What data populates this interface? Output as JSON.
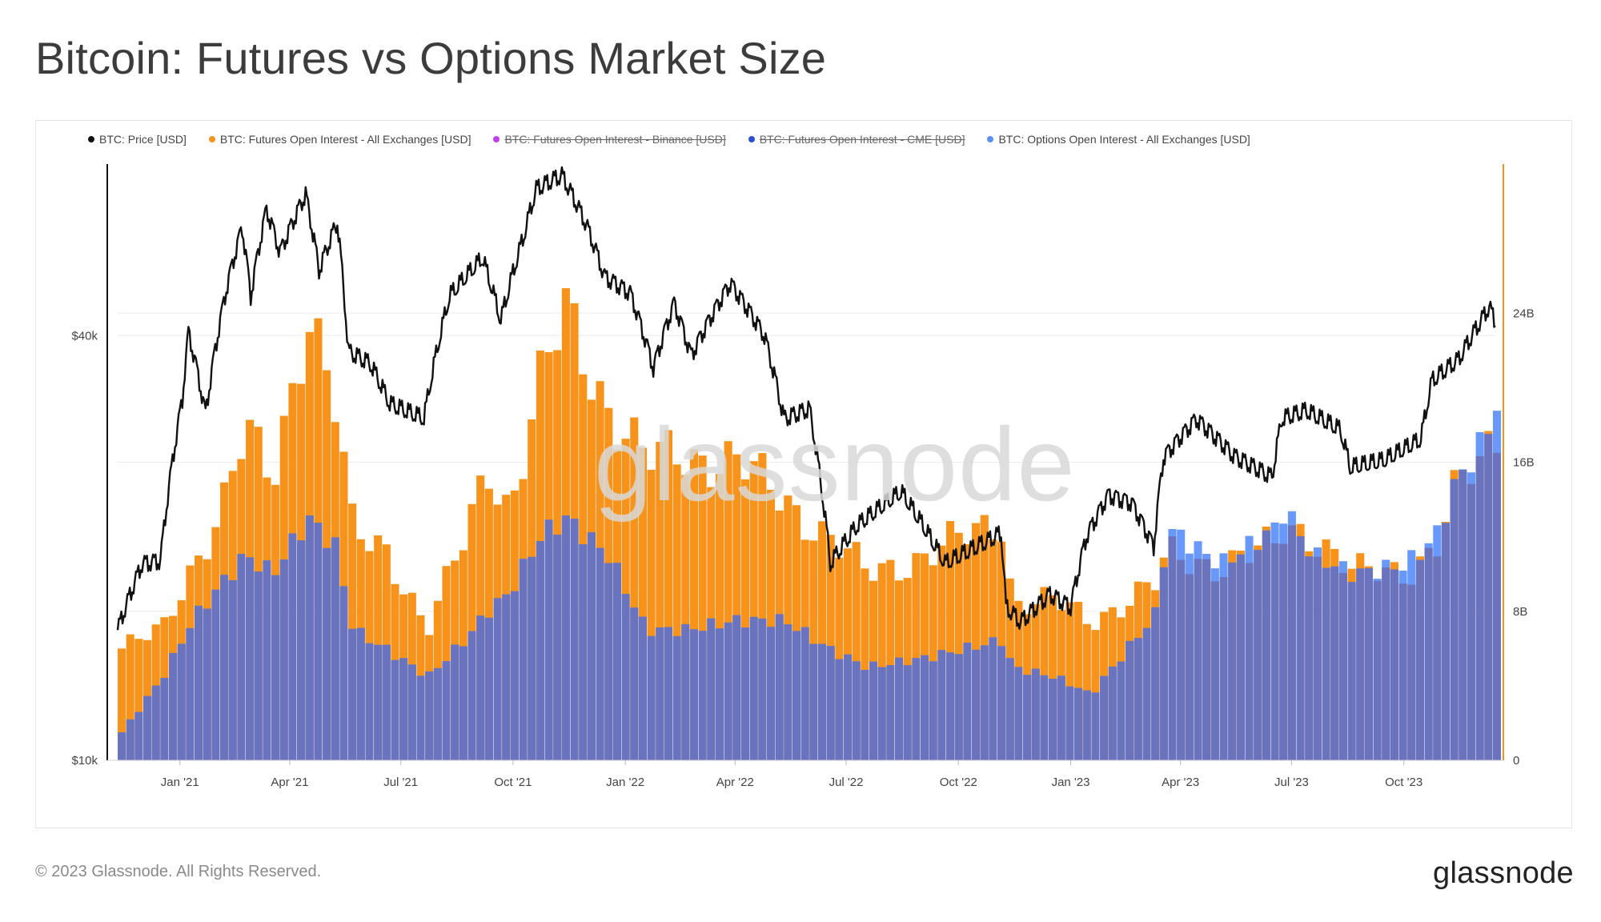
{
  "page": {
    "title": "Bitcoin: Futures vs Options Market Size",
    "footer_copyright": "© 2023 Glassnode. All Rights Reserved.",
    "footer_logo": "glassnode",
    "watermark": "glassnode"
  },
  "chart_data": {
    "type": "line+bar",
    "title": "Bitcoin: Futures vs Options Market Size",
    "legend_position": "top-left",
    "legend": [
      {
        "name": "BTC: Price [USD]",
        "color": "#111111",
        "enabled": true
      },
      {
        "name": "BTC: Futures Open Interest - All Exchanges [USD]",
        "color": "#f7931a",
        "enabled": true
      },
      {
        "name": "BTC: Futures Open Interest - Binance [USD]",
        "color": "#c43ee8",
        "enabled": false
      },
      {
        "name": "BTC: Futures Open Interest - CME [USD]",
        "color": "#2a4fd6",
        "enabled": false
      },
      {
        "name": "BTC: Options Open Interest - All Exchanges [USD]",
        "color": "#5b8ff9",
        "enabled": true
      }
    ],
    "x_ticks": [
      "Jan '21",
      "Apr '21",
      "Jul '21",
      "Oct '21",
      "Jan '22",
      "Apr '22",
      "Jul '22",
      "Oct '22",
      "Jan '23",
      "Apr '23",
      "Jul '23",
      "Oct '23"
    ],
    "x_range": [
      "2020-11-11",
      "2023-12-15"
    ],
    "y_left": {
      "ticks": [
        "$10k",
        "$40k"
      ],
      "scale": "log",
      "range": [
        10000,
        70000
      ]
    },
    "y_right": {
      "ticks": [
        "0",
        "8B",
        "16B",
        "24B"
      ],
      "range": [
        0,
        32
      ]
    },
    "grid": "horizontal",
    "series": [
      {
        "name": "BTC: Price [USD]",
        "kind": "line",
        "axis": "left",
        "dates": [
          "2020-11-11",
          "2020-12-01",
          "2020-12-16",
          "2021-01-03",
          "2021-01-08",
          "2021-01-22",
          "2021-02-08",
          "2021-02-21",
          "2021-02-28",
          "2021-03-13",
          "2021-03-24",
          "2021-04-14",
          "2021-04-25",
          "2021-05-10",
          "2021-05-19",
          "2021-06-06",
          "2021-06-22",
          "2021-07-20",
          "2021-08-10",
          "2021-09-06",
          "2021-09-21",
          "2021-10-10",
          "2021-10-20",
          "2021-11-10",
          "2021-11-30",
          "2021-12-15",
          "2022-01-05",
          "2022-01-24",
          "2022-02-10",
          "2022-02-24",
          "2022-03-28",
          "2022-04-25",
          "2022-05-11",
          "2022-06-01",
          "2022-06-18",
          "2022-07-10",
          "2022-08-15",
          "2022-09-20",
          "2022-10-26",
          "2022-11-05",
          "2022-11-09",
          "2022-11-21",
          "2022-12-15",
          "2023-01-01",
          "2023-01-14",
          "2023-02-01",
          "2023-02-20",
          "2023-03-10",
          "2023-03-18",
          "2023-04-14",
          "2023-05-15",
          "2023-06-15",
          "2023-06-23",
          "2023-07-13",
          "2023-08-10",
          "2023-08-18",
          "2023-09-15",
          "2023-10-15",
          "2023-10-24",
          "2023-11-15",
          "2023-12-05",
          "2023-12-10",
          "2023-12-15"
        ],
        "values": [
          15300,
          19000,
          19200,
          32500,
          40500,
          31000,
          46500,
          57000,
          45500,
          60500,
          52500,
          63500,
          49500,
          58000,
          38000,
          36500,
          32000,
          30500,
          45500,
          51500,
          42000,
          55500,
          64500,
          67500,
          57500,
          48500,
          46000,
          36000,
          44500,
          37500,
          47500,
          40000,
          30500,
          31500,
          19000,
          21500,
          24000,
          19000,
          20500,
          21000,
          16500,
          15700,
          17200,
          16500,
          20800,
          23800,
          23200,
          20100,
          26900,
          30500,
          27000,
          25200,
          30500,
          31300,
          29400,
          26000,
          26600,
          28500,
          34500,
          37000,
          42500,
          44000,
          41800
        ]
      },
      {
        "name": "BTC: Futures Open Interest - All Exchanges [USD]",
        "kind": "bar",
        "axis": "right",
        "dates": [
          "2020-11-11",
          "2020-12-15",
          "2021-01-08",
          "2021-02-01",
          "2021-02-21",
          "2021-03-15",
          "2021-04-13",
          "2021-05-05",
          "2021-05-20",
          "2021-06-15",
          "2021-07-20",
          "2021-08-20",
          "2021-09-07",
          "2021-09-25",
          "2021-10-20",
          "2021-11-10",
          "2021-12-15",
          "2022-01-15",
          "2022-02-15",
          "2022-03-30",
          "2022-05-09",
          "2022-06-13",
          "2022-07-15",
          "2022-09-01",
          "2022-11-06",
          "2022-11-10",
          "2022-12-15",
          "2023-01-01",
          "2023-01-14",
          "2023-03-10",
          "2023-03-18",
          "2023-05-01",
          "2023-06-15",
          "2023-06-22",
          "2023-07-15",
          "2023-08-18",
          "2023-09-30",
          "2023-10-24",
          "2023-11-10",
          "2023-12-01",
          "2023-12-15"
        ],
        "values": [
          6,
          7,
          10.5,
          13.5,
          17.5,
          15,
          24.5,
          19,
          12,
          11.5,
          7,
          12,
          16,
          13.5,
          20,
          24,
          19,
          16,
          16.5,
          16,
          14,
          12,
          10,
          11,
          13,
          8.5,
          8.5,
          8,
          7.5,
          9.5,
          11,
          10.5,
          11.5,
          12.5,
          12.2,
          10,
          10.2,
          11.5,
          14.5,
          16,
          17.5
        ]
      },
      {
        "name": "BTC: Options Open Interest - All Exchanges [USD]",
        "kind": "bar",
        "axis": "right",
        "dates": [
          "2020-11-11",
          "2020-12-15",
          "2021-01-08",
          "2021-02-01",
          "2021-02-21",
          "2021-03-15",
          "2021-04-13",
          "2021-05-05",
          "2021-05-20",
          "2021-06-15",
          "2021-07-20",
          "2021-08-20",
          "2021-09-07",
          "2021-09-25",
          "2021-10-20",
          "2021-11-10",
          "2021-12-15",
          "2022-01-15",
          "2022-02-15",
          "2022-03-30",
          "2022-05-09",
          "2022-06-13",
          "2022-07-15",
          "2022-09-01",
          "2022-11-06",
          "2022-11-10",
          "2022-12-15",
          "2023-01-01",
          "2023-01-14",
          "2023-03-10",
          "2023-03-18",
          "2023-05-01",
          "2023-06-15",
          "2023-06-22",
          "2023-07-15",
          "2023-08-18",
          "2023-09-30",
          "2023-10-24",
          "2023-11-10",
          "2023-12-01",
          "2023-12-15"
        ],
        "values": [
          1.5,
          4.5,
          7.5,
          9.5,
          11,
          10,
          13,
          11.5,
          7,
          6,
          4.5,
          6.5,
          8,
          9,
          12,
          13,
          11,
          7,
          7,
          7.5,
          7.5,
          6,
          5,
          5.5,
          6.5,
          5,
          4.5,
          4,
          3.5,
          8,
          12.5,
          10.5,
          12.5,
          13.5,
          11,
          10,
          10.5,
          12,
          15,
          17,
          19.5
        ]
      }
    ]
  }
}
